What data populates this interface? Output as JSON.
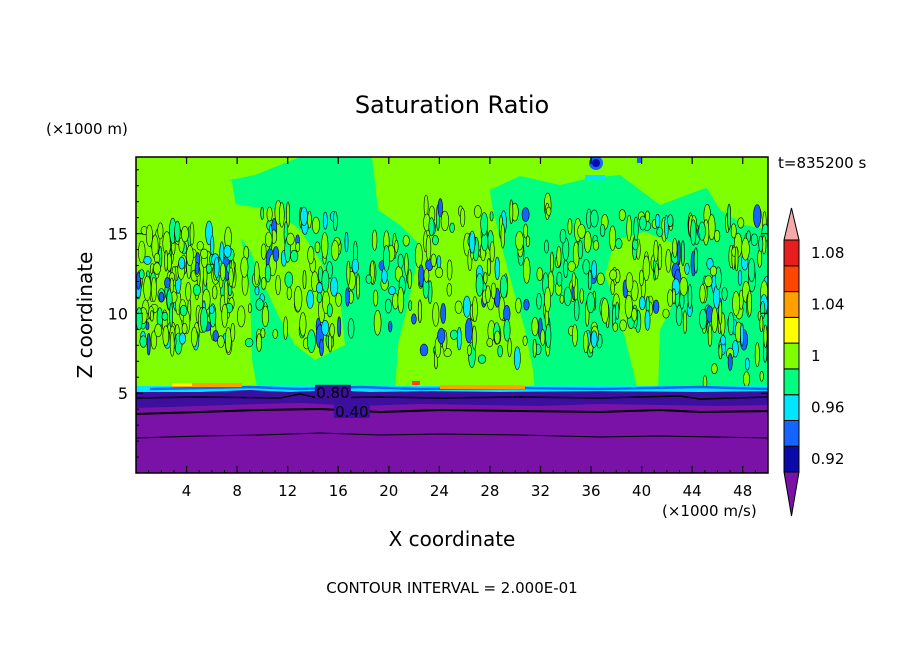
{
  "chart_data": {
    "type": "heatmap",
    "title": "Saturation Ratio",
    "xlabel": "X coordinate",
    "ylabel": "Z coordinate",
    "x_unit": "(×1000 m/s)",
    "y_unit": "(×1000 m)",
    "time_label": "t=835200 s",
    "footer": "CONTOUR INTERVAL = 2.000E-01",
    "xlim": [
      0,
      50
    ],
    "ylim": [
      0,
      19.8
    ],
    "x_ticks": [
      4,
      8,
      12,
      16,
      20,
      24,
      28,
      32,
      36,
      40,
      44,
      48
    ],
    "y_ticks": [
      5,
      10,
      15
    ],
    "contour_labels": [
      {
        "text": "0.80",
        "x": 15.5,
        "z": 4.9
      },
      {
        "text": "0.40",
        "x": 17.0,
        "z": 3.7
      }
    ],
    "colorbar": {
      "levels": [
        0.92,
        0.94,
        0.96,
        0.98,
        1.0,
        1.02,
        1.04,
        1.06,
        1.08,
        1.1
      ],
      "tick_labels": [
        "0.92",
        "0.96",
        "1",
        "1.04",
        "1.08"
      ],
      "colors": [
        "#3d0f9e",
        "#0a0aa8",
        "#1464ff",
        "#00e6ff",
        "#00ff80",
        "#80ff00",
        "#ffff00",
        "#ffa000",
        "#ff4600",
        "#e61e1e",
        "#f5aaaa"
      ],
      "under_color": "#7a12a8",
      "over_color": "#f5aaaa"
    },
    "regions": {
      "dry_layer": {
        "z_top": 5.2,
        "ratio": "< 0.92"
      },
      "moist_bands": [
        {
          "x_start": 0,
          "x_end": 9,
          "ratio": "1–1.02"
        },
        {
          "x_start": 19,
          "x_end": 31,
          "ratio": "1–1.02"
        },
        {
          "x_start": 38,
          "x_end": 42,
          "ratio": "1–1.02"
        }
      ],
      "background_ratio": "0.98–1"
    }
  }
}
